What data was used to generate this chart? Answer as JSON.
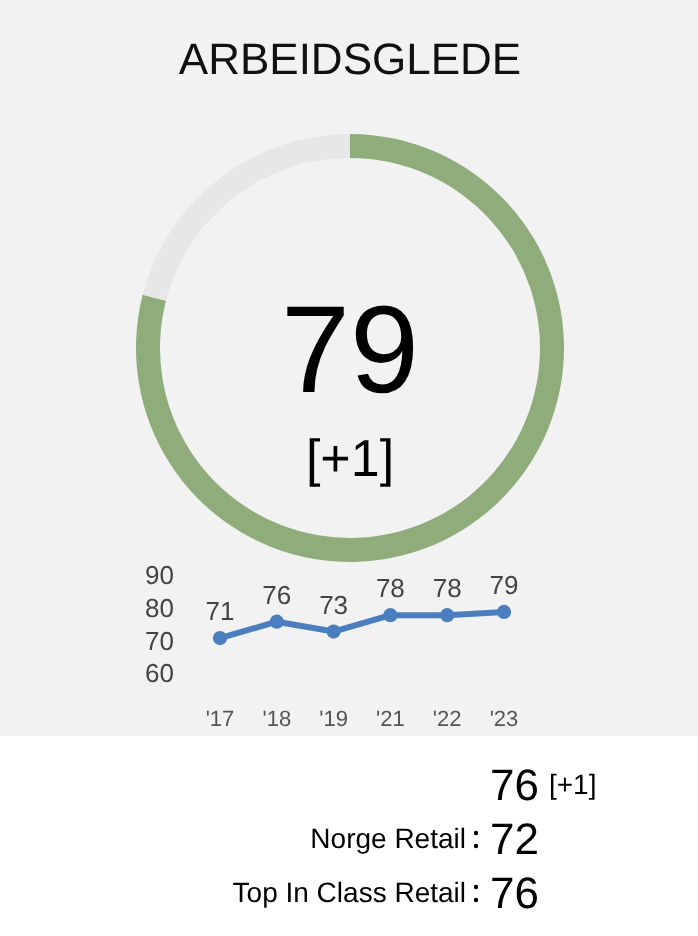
{
  "chart_data": [
    {
      "type": "donut",
      "title": "ARBEIDSGLEDE",
      "categories": [
        null,
        null
      ],
      "values": [
        79,
        21
      ],
      "colors": [
        "#8fac7b",
        "#e7e7e7"
      ],
      "annotations": [
        "79",
        "[+1]"
      ]
    },
    {
      "type": "line",
      "categories": [
        "'17",
        "'18",
        "'19",
        "'21",
        "'22",
        "'23"
      ],
      "values": [
        71,
        76,
        73,
        78,
        78,
        79
      ],
      "color": "#4a7ebf",
      "ylim": [
        60,
        90
      ],
      "yticks": [
        60,
        70,
        80,
        90
      ],
      "data_labels": true,
      "marker": "circle",
      "grid": false
    },
    {
      "type": "other",
      "categories": [
        null,
        "Norge Retail",
        "Top In Class Retail"
      ],
      "values": [
        76,
        72,
        76
      ],
      "data_labels": true,
      "annotations": [
        "[+1]"
      ]
    }
  ]
}
